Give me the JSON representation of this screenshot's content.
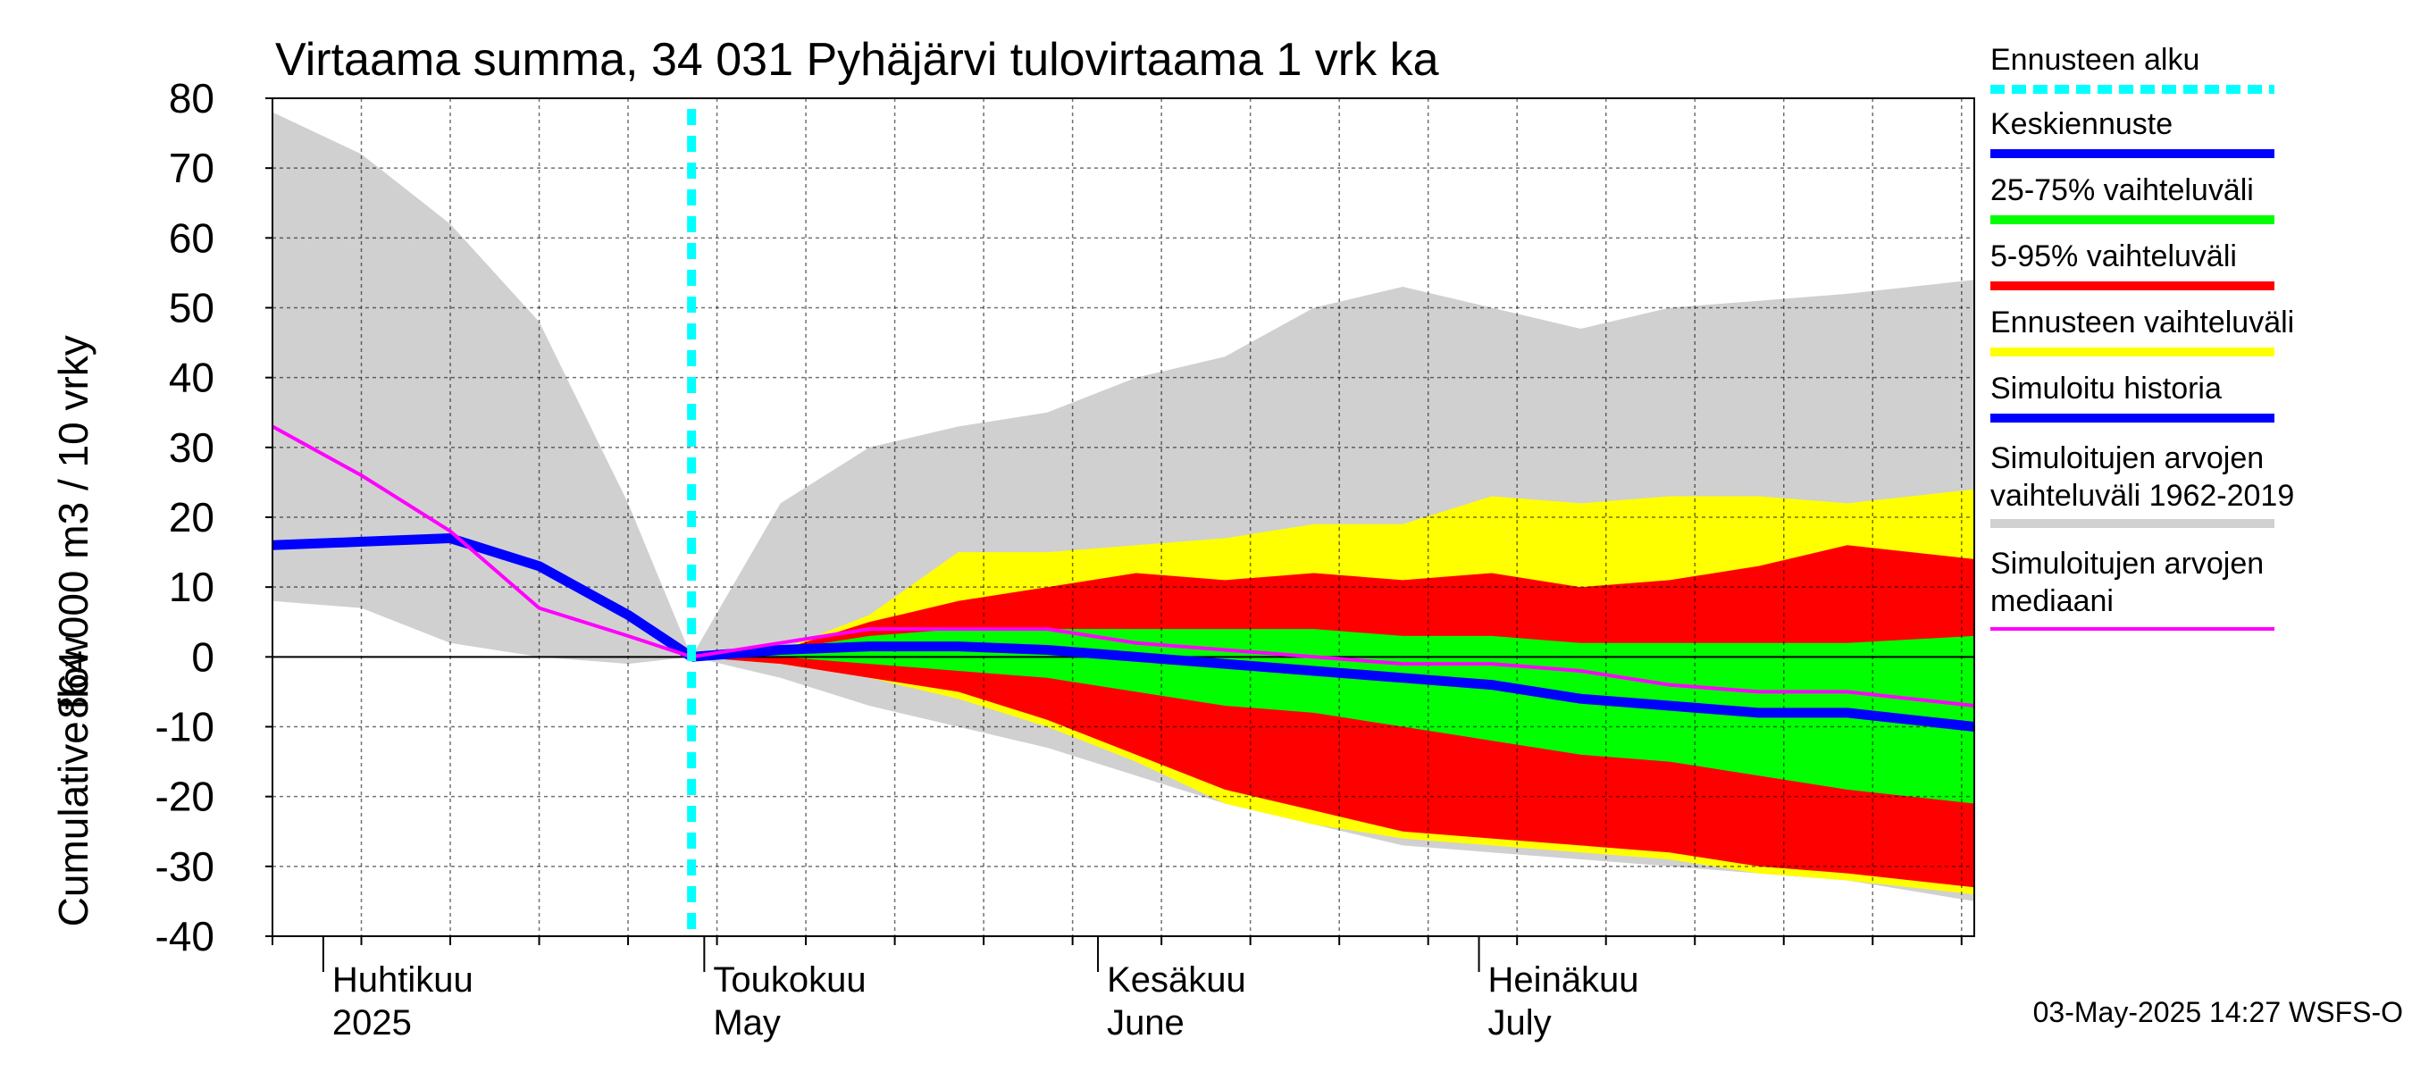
{
  "chart_data": {
    "type": "area",
    "title": "Virtaama summa, 34 031 Pyhäjärvi tulovirtaama 1 vrk ka",
    "ylabel_fi": "864 000 m3 / 10 vrky",
    "ylabel_en": "Cumulative flow",
    "ylim": [
      -40,
      80
    ],
    "yticks": [
      -40,
      -30,
      -20,
      -10,
      0,
      10,
      20,
      30,
      40,
      50,
      60,
      70,
      80
    ],
    "xlim": [
      "2025-03-28",
      "2025-08-09"
    ],
    "month_labels": [
      {
        "fi": "Huhtikuu",
        "en": "2025",
        "date": "2025-04-01"
      },
      {
        "fi": "Toukokuu",
        "en": "May",
        "date": "2025-05-01"
      },
      {
        "fi": "Kesäkuu",
        "en": "June",
        "date": "2025-06-01"
      },
      {
        "fi": "Heinäkuu",
        "en": "July",
        "date": "2025-07-01"
      }
    ],
    "forecast_start": "2025-04-30",
    "footer": "03-May-2025 14:27 WSFS-O",
    "legend": [
      {
        "label": "Ennusteen alku",
        "color": "#00ffff",
        "style": "dashed"
      },
      {
        "label": "Keskiennuste",
        "color": "#0000ff"
      },
      {
        "label": "25-75% vaihteluväli",
        "color": "#00ff00"
      },
      {
        "label": "5-95% vaihteluväli",
        "color": "#ff0000"
      },
      {
        "label": "Ennusteen vaihteluväli",
        "color": "#ffff00"
      },
      {
        "label": "Simuloitu historia",
        "color": "#0000ff"
      },
      {
        "label": "Simuloitujen arvojen vaihteluväli 1962-2019",
        "color": "#d0d0d0"
      },
      {
        "label": "Simuloitujen arvojen mediaani",
        "color": "#ff00ff"
      }
    ],
    "x_days": [
      "2025-03-28",
      "2025-04-04",
      "2025-04-11",
      "2025-04-18",
      "2025-04-25",
      "2025-04-30",
      "2025-05-07",
      "2025-05-14",
      "2025-05-21",
      "2025-05-28",
      "2025-06-04",
      "2025-06-11",
      "2025-06-18",
      "2025-06-25",
      "2025-07-02",
      "2025-07-09",
      "2025-07-16",
      "2025-07-23",
      "2025-07-30",
      "2025-08-09"
    ],
    "historical_range": {
      "upper": [
        78,
        72,
        62,
        48,
        22,
        0,
        22,
        30,
        33,
        35,
        40,
        43,
        50,
        53,
        50,
        47,
        50,
        51,
        52,
        54
      ],
      "lower": [
        8,
        7,
        2,
        0,
        -1,
        0,
        -3,
        -7,
        -10,
        -13,
        -17,
        -21,
        -24,
        -27,
        -28,
        -29,
        -30,
        -31,
        -32,
        -35
      ]
    },
    "forecast_range": {
      "upper": [
        null,
        null,
        null,
        null,
        null,
        0,
        1,
        6,
        15,
        15,
        16,
        17,
        19,
        19,
        23,
        22,
        23,
        23,
        22,
        24
      ],
      "lower": [
        null,
        null,
        null,
        null,
        null,
        0,
        -1,
        -3,
        -6,
        -10,
        -15,
        -21,
        -24,
        -26,
        -27,
        -28,
        -29,
        -31,
        -32,
        -34
      ]
    },
    "p5_95": {
      "upper": [
        null,
        null,
        null,
        null,
        null,
        0,
        1,
        5,
        8,
        10,
        12,
        11,
        12,
        11,
        12,
        10,
        11,
        13,
        16,
        14
      ],
      "lower": [
        null,
        null,
        null,
        null,
        null,
        0,
        -1,
        -3,
        -5,
        -9,
        -14,
        -19,
        -22,
        -25,
        -26,
        -27,
        -28,
        -30,
        -31,
        -33
      ]
    },
    "p25_75": {
      "upper": [
        null,
        null,
        null,
        null,
        null,
        0,
        1,
        3,
        4,
        4,
        4,
        4,
        4,
        3,
        3,
        2,
        2,
        2,
        2,
        3
      ],
      "lower": [
        null,
        null,
        null,
        null,
        null,
        0,
        0,
        -1,
        -2,
        -3,
        -5,
        -7,
        -8,
        -10,
        -12,
        -14,
        -15,
        -17,
        -19,
        -21
      ]
    },
    "series": [
      {
        "name": "Simuloitu historia",
        "values": [
          16,
          16.5,
          17,
          13,
          6,
          0,
          null,
          null,
          null,
          null,
          null,
          null,
          null,
          null,
          null,
          null,
          null,
          null,
          null,
          null
        ]
      },
      {
        "name": "Keskiennuste",
        "values": [
          null,
          null,
          null,
          null,
          null,
          0,
          1,
          1.5,
          1.5,
          1,
          0,
          -1,
          -2,
          -3,
          -4,
          -6,
          -7,
          -8,
          -8,
          -10
        ]
      },
      {
        "name": "Simuloitujen arvojen mediaani",
        "values": [
          33,
          26,
          18,
          7,
          3,
          0,
          2,
          4,
          4,
          4,
          2,
          1,
          0,
          -1,
          -1,
          -2,
          -4,
          -5,
          -5,
          -7
        ]
      }
    ]
  }
}
